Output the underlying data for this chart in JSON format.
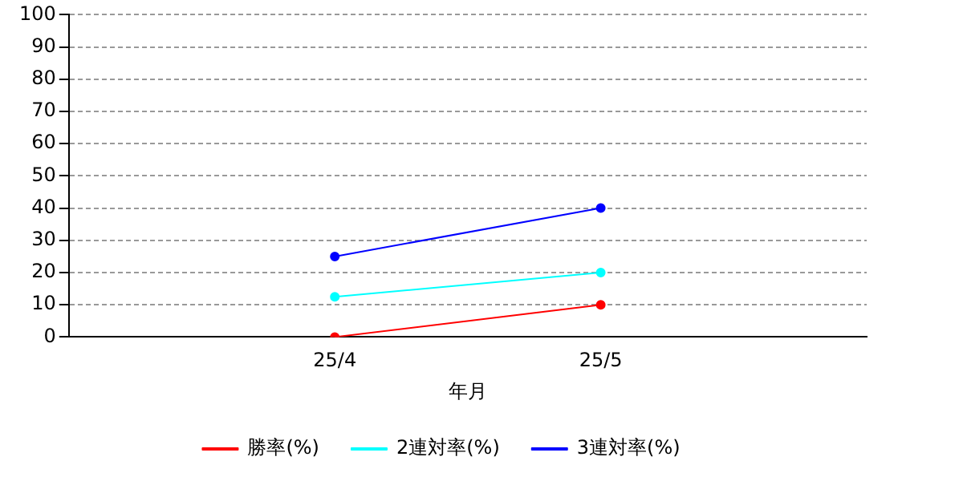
{
  "chart_data": {
    "type": "line",
    "xlabel": "年月",
    "categories": [
      null,
      "25/4",
      "25/5",
      null
    ],
    "series": [
      {
        "name": "勝率(%)",
        "color": "#ff0000",
        "values": [
          null,
          0,
          10,
          null
        ]
      },
      {
        "name": "2連対率(%)",
        "color": "#00ffff",
        "values": [
          null,
          12.5,
          20,
          null
        ]
      },
      {
        "name": "3連対率(%)",
        "color": "#0000ff",
        "values": [
          null,
          25,
          40,
          null
        ]
      }
    ],
    "ylim": [
      0,
      100
    ],
    "yticks": [
      0,
      10,
      20,
      30,
      40,
      50,
      60,
      70,
      80,
      90,
      100
    ],
    "grid": "y",
    "legend": "bottom",
    "marker": "circle",
    "line_style": "solid"
  }
}
